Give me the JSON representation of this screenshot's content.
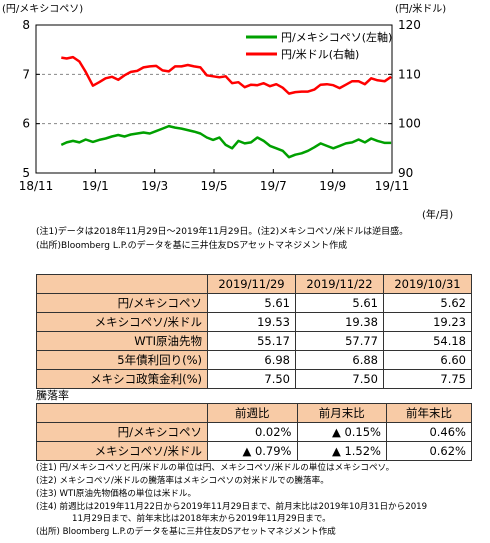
{
  "chart_data": {
    "type": "line",
    "y_left_label": "(円/メキシコペソ)",
    "y_right_label": "(円/米ドル)",
    "x_unit_label": "(年/月)",
    "x_ticks": [
      "18/11",
      "19/1",
      "19/3",
      "19/5",
      "19/7",
      "19/9",
      "19/11"
    ],
    "y_left_ticks": [
      "8",
      "7",
      "6",
      "5"
    ],
    "y_right_ticks": [
      "120",
      "110",
      "100",
      "90"
    ],
    "y_left_range": [
      5,
      8
    ],
    "y_right_range": [
      90,
      120
    ],
    "grid": "dashed at 6 and 7",
    "legend_position": "top-right",
    "series": [
      {
        "name": "円/メキシコペソ(左軸)",
        "axis": "left",
        "color": "#00a000",
        "points": [
          [
            "2018-11-29",
            5.57
          ],
          [
            "2018-12-05",
            5.62
          ],
          [
            "2018-12-12",
            5.65
          ],
          [
            "2018-12-19",
            5.62
          ],
          [
            "2018-12-26",
            5.68
          ],
          [
            "2019-01-03",
            5.63
          ],
          [
            "2019-01-10",
            5.67
          ],
          [
            "2019-01-17",
            5.7
          ],
          [
            "2019-01-24",
            5.74
          ],
          [
            "2019-01-31",
            5.77
          ],
          [
            "2019-02-07",
            5.74
          ],
          [
            "2019-02-14",
            5.78
          ],
          [
            "2019-02-21",
            5.8
          ],
          [
            "2019-02-28",
            5.82
          ],
          [
            "2019-03-07",
            5.8
          ],
          [
            "2019-03-14",
            5.85
          ],
          [
            "2019-03-21",
            5.9
          ],
          [
            "2019-03-28",
            5.95
          ],
          [
            "2019-04-04",
            5.92
          ],
          [
            "2019-04-11",
            5.9
          ],
          [
            "2019-04-18",
            5.87
          ],
          [
            "2019-04-25",
            5.84
          ],
          [
            "2019-05-02",
            5.8
          ],
          [
            "2019-05-09",
            5.72
          ],
          [
            "2019-05-16",
            5.67
          ],
          [
            "2019-05-23",
            5.72
          ],
          [
            "2019-05-30",
            5.57
          ],
          [
            "2019-06-06",
            5.5
          ],
          [
            "2019-06-13",
            5.65
          ],
          [
            "2019-06-20",
            5.6
          ],
          [
            "2019-06-27",
            5.62
          ],
          [
            "2019-07-04",
            5.72
          ],
          [
            "2019-07-11",
            5.65
          ],
          [
            "2019-07-18",
            5.55
          ],
          [
            "2019-07-25",
            5.5
          ],
          [
            "2019-08-01",
            5.45
          ],
          [
            "2019-08-08",
            5.32
          ],
          [
            "2019-08-15",
            5.37
          ],
          [
            "2019-08-22",
            5.4
          ],
          [
            "2019-08-29",
            5.45
          ],
          [
            "2019-09-05",
            5.52
          ],
          [
            "2019-09-12",
            5.6
          ],
          [
            "2019-09-19",
            5.55
          ],
          [
            "2019-09-26",
            5.5
          ],
          [
            "2019-10-03",
            5.55
          ],
          [
            "2019-10-10",
            5.6
          ],
          [
            "2019-10-17",
            5.62
          ],
          [
            "2019-10-24",
            5.68
          ],
          [
            "2019-10-31",
            5.62
          ],
          [
            "2019-11-07",
            5.7
          ],
          [
            "2019-11-14",
            5.65
          ],
          [
            "2019-11-22",
            5.61
          ],
          [
            "2019-11-29",
            5.61
          ]
        ]
      },
      {
        "name": "円/米ドル(右軸)",
        "axis": "right",
        "color": "#ff0000",
        "points": [
          [
            "2018-11-29",
            113.4
          ],
          [
            "2018-12-05",
            113.2
          ],
          [
            "2018-12-12",
            113.5
          ],
          [
            "2018-12-19",
            112.6
          ],
          [
            "2018-12-26",
            110.5
          ],
          [
            "2019-01-03",
            107.7
          ],
          [
            "2019-01-10",
            108.4
          ],
          [
            "2019-01-17",
            109.2
          ],
          [
            "2019-01-24",
            109.5
          ],
          [
            "2019-01-31",
            108.9
          ],
          [
            "2019-02-07",
            109.8
          ],
          [
            "2019-02-14",
            110.5
          ],
          [
            "2019-02-21",
            110.7
          ],
          [
            "2019-02-28",
            111.4
          ],
          [
            "2019-03-07",
            111.6
          ],
          [
            "2019-03-14",
            111.7
          ],
          [
            "2019-03-21",
            110.8
          ],
          [
            "2019-03-28",
            110.6
          ],
          [
            "2019-04-04",
            111.6
          ],
          [
            "2019-04-11",
            111.6
          ],
          [
            "2019-04-18",
            111.9
          ],
          [
            "2019-04-25",
            111.6
          ],
          [
            "2019-05-02",
            111.4
          ],
          [
            "2019-05-09",
            109.8
          ],
          [
            "2019-05-16",
            109.6
          ],
          [
            "2019-05-23",
            109.4
          ],
          [
            "2019-05-30",
            109.6
          ],
          [
            "2019-06-06",
            108.2
          ],
          [
            "2019-06-13",
            108.4
          ],
          [
            "2019-06-20",
            107.4
          ],
          [
            "2019-06-27",
            107.9
          ],
          [
            "2019-07-04",
            107.8
          ],
          [
            "2019-07-11",
            108.2
          ],
          [
            "2019-07-18",
            107.6
          ],
          [
            "2019-07-25",
            108.0
          ],
          [
            "2019-08-01",
            107.3
          ],
          [
            "2019-08-08",
            106.1
          ],
          [
            "2019-08-15",
            106.4
          ],
          [
            "2019-08-22",
            106.5
          ],
          [
            "2019-08-29",
            106.5
          ],
          [
            "2019-09-05",
            106.9
          ],
          [
            "2019-09-12",
            107.9
          ],
          [
            "2019-09-19",
            108.0
          ],
          [
            "2019-09-26",
            107.8
          ],
          [
            "2019-10-03",
            107.2
          ],
          [
            "2019-10-10",
            107.9
          ],
          [
            "2019-10-17",
            108.6
          ],
          [
            "2019-10-24",
            108.6
          ],
          [
            "2019-10-31",
            108.0
          ],
          [
            "2019-11-07",
            109.2
          ],
          [
            "2019-11-14",
            108.8
          ],
          [
            "2019-11-22",
            108.6
          ],
          [
            "2019-11-29",
            109.5
          ]
        ]
      }
    ]
  },
  "chart_notes": [
    "(注1)データは2018年11月29日～2019年11月29日。(注2)メキシコペソ/米ドルは逆目盛。",
    "(出所)Bloomberg L.P.のデータを基に三井住友DSアセットマネジメント作成"
  ],
  "market_table": {
    "headers": [
      "",
      "2019/11/29",
      "2019/11/22",
      "2019/10/31"
    ],
    "rows": [
      {
        "label": "円/メキシコペソ",
        "values": [
          "5.61",
          "5.61",
          "5.62"
        ]
      },
      {
        "label": "メキシコペソ/米ドル",
        "values": [
          "19.53",
          "19.38",
          "19.23"
        ]
      },
      {
        "label": "WTI原油先物",
        "values": [
          "55.17",
          "57.77",
          "54.18"
        ]
      },
      {
        "label": "5年債利回り(%)",
        "values": [
          "6.98",
          "6.88",
          "6.60"
        ]
      },
      {
        "label": "メキシコ政策金利(%)",
        "values": [
          "7.50",
          "7.50",
          "7.75"
        ]
      }
    ]
  },
  "change_section_title": "騰落率",
  "change_table": {
    "headers": [
      "",
      "前週比",
      "前月末比",
      "前年末比"
    ],
    "rows": [
      {
        "label": "円/メキシコペソ",
        "values": [
          "0.02%",
          "▲ 0.15%",
          "0.46%"
        ]
      },
      {
        "label": "メキシコペソ/米ドル",
        "values": [
          "▲ 0.79%",
          "▲ 1.52%",
          "0.62%"
        ]
      }
    ]
  },
  "footnotes": [
    "(注1) 円/メキシコペソと円/米ドルの単位は円、メキシコペソ/米ドルの単位はメキシコペソ。",
    "(注2) メキシコペソ/米ドルの騰落率はメキシコペソの対米ドルでの騰落率。",
    "(注3) WTI原油先物価格の単位は米ドル。",
    "(注4) 前週比は2019年11月22日から2019年11月29日まで、前月末比は2019年10月31日から2019",
    "11月29日まで、前年末比は2018年末から2019年11月29日まで。",
    "(出所) Bloomberg L.P.のデータを基に三井住友DSアセットマネジメント作成"
  ]
}
